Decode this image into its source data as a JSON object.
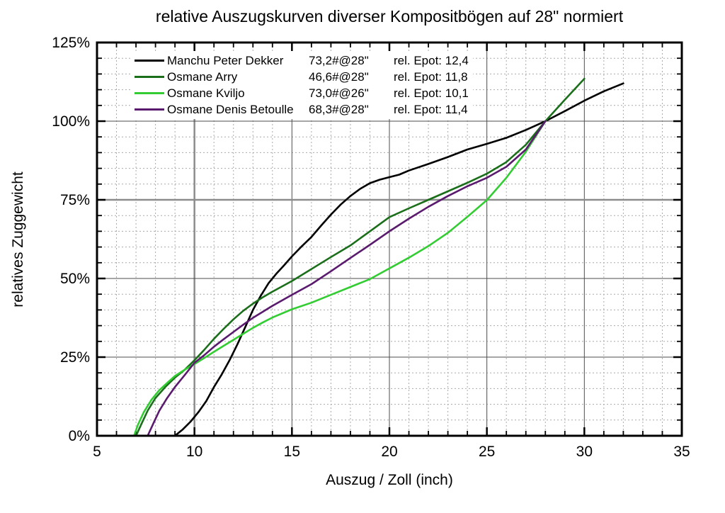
{
  "title": "relative Auszugskurven diverser Kompositbögen auf 28\" normiert",
  "x_axis_label": "Auszug / Zoll (inch)",
  "y_axis_label": "relatives Zuggewicht",
  "chart_data": {
    "type": "line",
    "title": "relative Auszugskurven diverser Kompositbögen auf 28\" normiert",
    "xlabel": "Auszug / Zoll (inch)",
    "ylabel": "relatives Zuggewicht",
    "xlim": [
      5,
      35
    ],
    "ylim": [
      0,
      125
    ],
    "x_tick_values": [
      5,
      10,
      15,
      20,
      25,
      30,
      35
    ],
    "x_tick_labels": [
      "5",
      "10",
      "15",
      "20",
      "25",
      "30",
      "35"
    ],
    "y_tick_values": [
      0,
      25,
      50,
      75,
      100,
      125
    ],
    "y_tick_labels": [
      "0%",
      "25%",
      "50%",
      "75%",
      "100%",
      "125%"
    ],
    "x_minor_step": 1,
    "y_minor_step": 5,
    "x_major_gridlines": [
      10,
      15,
      20,
      25,
      30
    ],
    "y_major_gridlines": [
      25,
      50,
      75,
      100
    ],
    "emphasized_gridlines": {
      "x": [
        10
      ],
      "y": [
        75
      ]
    },
    "grid": {
      "major": true,
      "minor": true,
      "minor_style": "dotted"
    },
    "legend_position": "top-left",
    "series": [
      {
        "name": "Manchu Peter Dekker",
        "weight": "73,2#@28\"",
        "epot": "rel. Epot: 12,4",
        "color": "#000000",
        "points": [
          [
            9,
            0
          ],
          [
            9.4,
            2
          ],
          [
            9.8,
            4.5
          ],
          [
            10.2,
            7.5
          ],
          [
            10.6,
            11
          ],
          [
            11,
            15.5
          ],
          [
            11.4,
            19.5
          ],
          [
            11.8,
            24
          ],
          [
            12.2,
            29
          ],
          [
            12.6,
            34.5
          ],
          [
            13,
            40
          ],
          [
            13.4,
            44.5
          ],
          [
            13.8,
            48.5
          ],
          [
            14.2,
            51.5
          ],
          [
            14.6,
            54.2
          ],
          [
            15,
            57
          ],
          [
            15.5,
            60.2
          ],
          [
            16,
            63.2
          ],
          [
            16.5,
            66.8
          ],
          [
            17,
            70.3
          ],
          [
            17.5,
            73.5
          ],
          [
            18,
            76.2
          ],
          [
            18.5,
            78.5
          ],
          [
            19,
            80.3
          ],
          [
            19.5,
            81.4
          ],
          [
            20,
            82.2
          ],
          [
            20.5,
            83
          ],
          [
            21,
            84.3
          ],
          [
            22,
            86.4
          ],
          [
            23,
            88.6
          ],
          [
            24,
            91
          ],
          [
            25,
            92.8
          ],
          [
            26,
            94.7
          ],
          [
            27,
            97.2
          ],
          [
            28,
            100
          ],
          [
            29,
            103.2
          ],
          [
            30,
            106.5
          ],
          [
            31,
            109.5
          ],
          [
            32,
            112
          ]
        ]
      },
      {
        "name": "Osmane Arry",
        "weight": "46,6#@28\"",
        "epot": "rel. Epot: 11,8",
        "color": "#1b6f1b",
        "points": [
          [
            7,
            0
          ],
          [
            7.3,
            4
          ],
          [
            7.6,
            8
          ],
          [
            8,
            12
          ],
          [
            8.5,
            15.5
          ],
          [
            9,
            18.5
          ],
          [
            9.5,
            21
          ],
          [
            10,
            24
          ],
          [
            10.5,
            27.3
          ],
          [
            11,
            30.8
          ],
          [
            11.5,
            34
          ],
          [
            12,
            37
          ],
          [
            12.5,
            39.7
          ],
          [
            13,
            42
          ],
          [
            13.5,
            44
          ],
          [
            14,
            45.8
          ],
          [
            15,
            49.2
          ],
          [
            16,
            53
          ],
          [
            17,
            56.8
          ],
          [
            18,
            60.5
          ],
          [
            19,
            65
          ],
          [
            20,
            69.5
          ],
          [
            21,
            72.3
          ],
          [
            22,
            75
          ],
          [
            23,
            77.7
          ],
          [
            24,
            80.4
          ],
          [
            25,
            83.3
          ],
          [
            26,
            87
          ],
          [
            27,
            92.5
          ],
          [
            28,
            100
          ],
          [
            29,
            106.8
          ],
          [
            30,
            113.5
          ]
        ]
      },
      {
        "name": "Osmane Kviljo",
        "weight": "73,0#@26\"",
        "epot": "rel. Epot: 10,1",
        "color": "#33cc33",
        "points": [
          [
            6.9,
            0
          ],
          [
            7.1,
            3.5
          ],
          [
            7.4,
            7.5
          ],
          [
            7.8,
            11.5
          ],
          [
            8.2,
            14.5
          ],
          [
            8.6,
            16.8
          ],
          [
            9,
            19
          ],
          [
            9.5,
            21
          ],
          [
            10,
            22.8
          ],
          [
            10.5,
            24.7
          ],
          [
            11,
            26.7
          ],
          [
            11.5,
            28.6
          ],
          [
            12,
            30.5
          ],
          [
            12.5,
            32.4
          ],
          [
            13,
            34.3
          ],
          [
            13.5,
            36
          ],
          [
            14,
            37.6
          ],
          [
            15,
            40.2
          ],
          [
            16,
            42.3
          ],
          [
            17,
            44.8
          ],
          [
            18,
            47.3
          ],
          [
            19,
            49.8
          ],
          [
            20,
            53.2
          ],
          [
            21,
            56.6
          ],
          [
            22,
            60.3
          ],
          [
            23,
            64.5
          ],
          [
            24,
            69.6
          ],
          [
            25,
            74.9
          ],
          [
            26,
            82
          ],
          [
            27,
            90.3
          ],
          [
            28,
            100
          ]
        ]
      },
      {
        "name": "Osmane Denis Betoulle",
        "weight": "68,3#@28\"",
        "epot": "rel. Epot: 11,4",
        "color": "#5a1a6e",
        "points": [
          [
            7.6,
            0
          ],
          [
            7.9,
            4
          ],
          [
            8.2,
            8
          ],
          [
            8.6,
            12
          ],
          [
            9,
            15.5
          ],
          [
            9.5,
            19.3
          ],
          [
            10,
            23.2
          ],
          [
            10.5,
            25.6
          ],
          [
            11,
            28.3
          ],
          [
            11.5,
            30.7
          ],
          [
            12,
            33
          ],
          [
            12.5,
            35.3
          ],
          [
            13,
            37.5
          ],
          [
            13.5,
            39.4
          ],
          [
            14,
            41.3
          ],
          [
            15,
            44.8
          ],
          [
            16,
            48.2
          ],
          [
            17,
            52.3
          ],
          [
            18,
            56.5
          ],
          [
            19,
            60.7
          ],
          [
            20,
            65
          ],
          [
            21,
            69
          ],
          [
            22,
            72.8
          ],
          [
            23,
            76.2
          ],
          [
            24,
            79.3
          ],
          [
            25,
            82
          ],
          [
            26,
            85.5
          ],
          [
            27,
            91
          ],
          [
            28,
            100
          ]
        ]
      }
    ]
  }
}
